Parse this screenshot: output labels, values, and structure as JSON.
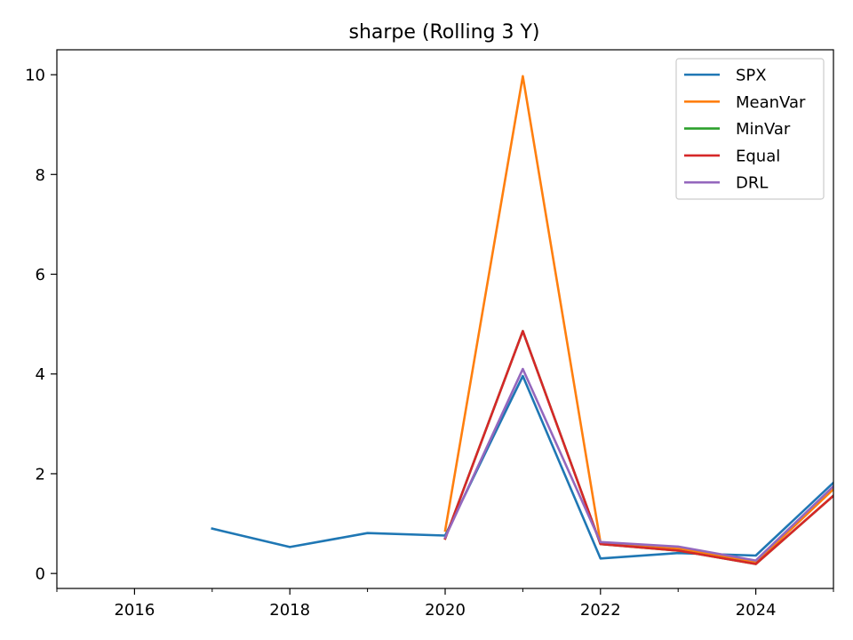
{
  "chart_data": {
    "type": "line",
    "title": "sharpe (Rolling 3 Y)",
    "xlabel": "",
    "ylabel": "",
    "xlim": [
      2015,
      2025
    ],
    "ylim": [
      -0.3,
      10.5
    ],
    "x_ticks": [
      2016,
      2018,
      2020,
      2022,
      2024
    ],
    "x_minor_ticks": [
      2015,
      2017,
      2019,
      2021,
      2023,
      2025
    ],
    "y_ticks": [
      0,
      2,
      4,
      6,
      8,
      10
    ],
    "grid": false,
    "legend_position": "top-right",
    "series": [
      {
        "name": "SPX",
        "color": "#1f77b4",
        "x": [
          2017,
          2018,
          2019,
          2020,
          2021,
          2022,
          2023,
          2024,
          2025
        ],
        "y": [
          0.9,
          0.53,
          0.81,
          0.76,
          3.96,
          0.3,
          0.41,
          0.36,
          1.82
        ]
      },
      {
        "name": "MeanVar",
        "color": "#ff7f0e",
        "x": [
          2020,
          2021,
          2022,
          2023,
          2024,
          2025
        ],
        "y": [
          0.86,
          9.97,
          0.62,
          0.5,
          0.22,
          1.69
        ]
      },
      {
        "name": "MinVar",
        "color": "#2ca02c",
        "x": [
          2020,
          2021,
          2022,
          2023,
          2024,
          2025
        ],
        "y": [
          0.7,
          4.86,
          0.59,
          0.46,
          0.19,
          1.56
        ]
      },
      {
        "name": "Equal",
        "color": "#d62728",
        "x": [
          2020,
          2021,
          2022,
          2023,
          2024,
          2025
        ],
        "y": [
          0.7,
          4.86,
          0.59,
          0.46,
          0.19,
          1.56
        ]
      },
      {
        "name": "DRL",
        "color": "#9467bd",
        "x": [
          2020,
          2021,
          2022,
          2023,
          2024,
          2025
        ],
        "y": [
          0.72,
          4.1,
          0.63,
          0.54,
          0.26,
          1.75
        ]
      }
    ]
  }
}
